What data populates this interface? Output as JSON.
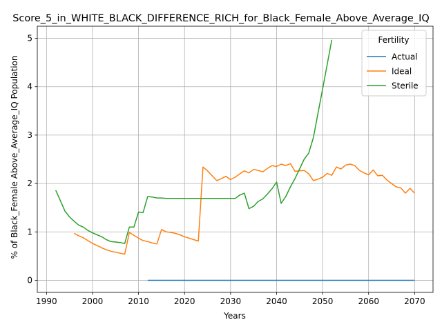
{
  "chart_data": {
    "type": "line",
    "title": "Score_5_in_WHITE_BLACK_DIFFERENCE_RICH_for_Black_Female_Above_Average_IQ",
    "xlabel": "Years",
    "ylabel": "% of Black_Female Above_Average_IQ Population",
    "xlim": [
      1988,
      2074
    ],
    "ylim": [
      -0.25,
      5.25
    ],
    "xticks": [
      1990,
      2000,
      2010,
      2020,
      2030,
      2040,
      2050,
      2060,
      2070
    ],
    "yticks": [
      0,
      1,
      2,
      3,
      4,
      5
    ],
    "grid": true,
    "legend": {
      "title": "Fertility",
      "placement": "top-right"
    },
    "series": [
      {
        "name": "Actual",
        "color": "#1f77b4",
        "x": [
          2012,
          2070
        ],
        "y": [
          0.0,
          0.0
        ]
      },
      {
        "name": "Ideal",
        "color": "#ff7f0e",
        "x": [
          1996,
          1997,
          1998,
          1999,
          2000,
          2001,
          2002,
          2003,
          2004,
          2005,
          2006,
          2007,
          2008,
          2009,
          2010,
          2011,
          2012,
          2013,
          2014,
          2015,
          2016,
          2017,
          2018,
          2019,
          2020,
          2021,
          2022,
          2023,
          2024,
          2025,
          2026,
          2027,
          2028,
          2029,
          2030,
          2031,
          2032,
          2033,
          2034,
          2035,
          2036,
          2037,
          2038,
          2039,
          2040,
          2041,
          2042,
          2043,
          2044,
          2045,
          2046,
          2047,
          2048,
          2049,
          2050,
          2051,
          2052,
          2053,
          2054,
          2055,
          2056,
          2057,
          2058,
          2059,
          2060,
          2061,
          2062,
          2063,
          2064,
          2065,
          2066,
          2067,
          2068,
          2069,
          2070
        ],
        "y": [
          0.97,
          0.92,
          0.88,
          0.82,
          0.76,
          0.72,
          0.67,
          0.63,
          0.6,
          0.58,
          0.56,
          0.54,
          0.99,
          0.93,
          0.87,
          0.82,
          0.8,
          0.77,
          0.75,
          1.05,
          1.0,
          0.99,
          0.97,
          0.94,
          0.9,
          0.87,
          0.84,
          0.81,
          2.34,
          2.26,
          2.16,
          2.06,
          2.1,
          2.15,
          2.08,
          2.13,
          2.2,
          2.26,
          2.22,
          2.29,
          2.27,
          2.24,
          2.31,
          2.37,
          2.35,
          2.4,
          2.37,
          2.41,
          2.25,
          2.26,
          2.27,
          2.2,
          2.06,
          2.09,
          2.13,
          2.21,
          2.17,
          2.34,
          2.3,
          2.38,
          2.4,
          2.37,
          2.27,
          2.22,
          2.18,
          2.28,
          2.16,
          2.17,
          2.07,
          2.0,
          1.93,
          1.91,
          1.8,
          1.9,
          1.8
        ]
      },
      {
        "name": "Sterile",
        "color": "#2ca02c",
        "x": [
          1992,
          1993,
          1994,
          1995,
          1996,
          1997,
          1998,
          1999,
          2000,
          2001,
          2002,
          2003,
          2004,
          2005,
          2006,
          2007,
          2008,
          2009,
          2010,
          2011,
          2012,
          2013,
          2014,
          2015,
          2016,
          2017,
          2018,
          2019,
          2020,
          2021,
          2022,
          2023,
          2024,
          2025,
          2026,
          2027,
          2028,
          2029,
          2030,
          2031,
          2032,
          2033,
          2034,
          2035,
          2036,
          2037,
          2038,
          2039,
          2040,
          2041,
          2042,
          2043,
          2044,
          2045,
          2046,
          2047,
          2048,
          2049,
          2050,
          2051,
          2052
        ],
        "y": [
          1.86,
          1.65,
          1.43,
          1.31,
          1.22,
          1.14,
          1.1,
          1.03,
          0.98,
          0.94,
          0.9,
          0.84,
          0.8,
          0.79,
          0.78,
          0.76,
          1.1,
          1.1,
          1.41,
          1.4,
          1.73,
          1.72,
          1.7,
          1.7,
          1.69,
          1.69,
          1.69,
          1.69,
          1.69,
          1.69,
          1.69,
          1.69,
          1.69,
          1.69,
          1.69,
          1.69,
          1.69,
          1.69,
          1.69,
          1.69,
          1.76,
          1.8,
          1.48,
          1.53,
          1.63,
          1.68,
          1.78,
          1.89,
          2.03,
          1.59,
          1.73,
          1.93,
          2.1,
          2.3,
          2.5,
          2.63,
          2.95,
          3.45,
          3.95,
          4.46,
          4.97
        ]
      }
    ]
  }
}
